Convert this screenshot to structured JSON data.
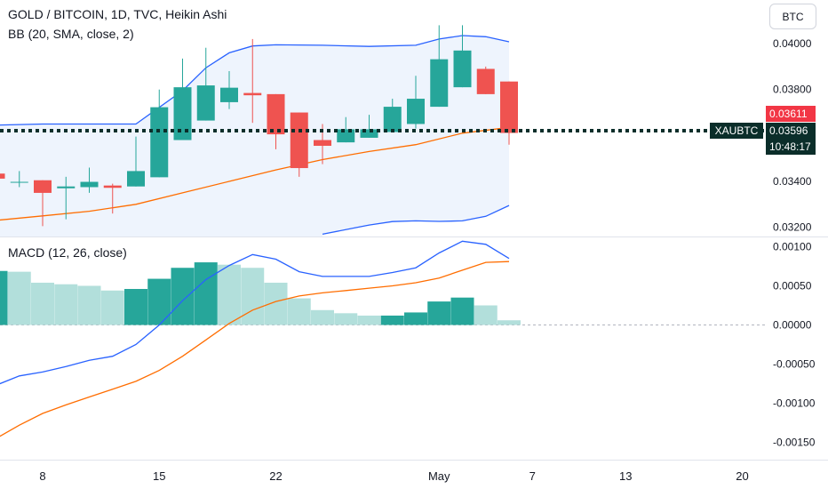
{
  "legend": {
    "main_title": "GOLD / BITCOIN, 1D, TVC, Heikin Ashi",
    "bb_title": "BB (20, SMA, close, 2)",
    "macd_title": "MACD (12, 26, close)"
  },
  "currency_badge": "BTC",
  "price_tags": {
    "symbol": "XAUBTC",
    "last_price": "0.03596",
    "countdown": "10:48:17",
    "open_price": "0.03611"
  },
  "colors": {
    "up": "#26a69a",
    "down": "#ef5350",
    "bb_band": "#2962ff",
    "bb_basis": "#ff6d00",
    "bb_fill": "#eef4fd",
    "macd_line": "#2962ff",
    "signal_line": "#ff6d00",
    "hist_strong": "#26a69a",
    "hist_weak": "#b2dfdb",
    "last_price_bg": "#0b2e2a",
    "open_price_bg": "#f23645"
  },
  "chart_data": [
    {
      "type": "candlestick",
      "title": "GOLD / BITCOIN, 1D, TVC, Heikin Ashi",
      "ylim": [
        0.0316,
        0.0419
      ],
      "y_ticks": [
        "0.03200",
        "0.03400",
        "0.03600",
        "0.03800",
        "0.04000"
      ],
      "x_ticks": [
        {
          "label": "8",
          "t": 0
        },
        {
          "label": "15",
          "t": 5
        },
        {
          "label": "22",
          "t": 10
        },
        {
          "label": "May",
          "t": 17
        },
        {
          "label": "7",
          "t": 21
        },
        {
          "label": "13",
          "t": 25
        },
        {
          "label": "20",
          "t": 30
        }
      ],
      "candles": [
        {
          "t": -2,
          "open": 0.03434,
          "high": 0.03445,
          "low": 0.0342,
          "close": 0.03412
        },
        {
          "t": -1,
          "open": 0.03398,
          "high": 0.03445,
          "low": 0.03375,
          "close": 0.03398
        },
        {
          "t": 0,
          "open": 0.03405,
          "high": 0.03405,
          "low": 0.03205,
          "close": 0.0335
        },
        {
          "t": 1,
          "open": 0.0337,
          "high": 0.0342,
          "low": 0.03235,
          "close": 0.03378
        },
        {
          "t": 2,
          "open": 0.03375,
          "high": 0.0346,
          "low": 0.0335,
          "close": 0.03398
        },
        {
          "t": 3,
          "open": 0.03382,
          "high": 0.0339,
          "low": 0.0326,
          "close": 0.03372
        },
        {
          "t": 4,
          "open": 0.03378,
          "high": 0.03595,
          "low": 0.03378,
          "close": 0.03445
        },
        {
          "t": 5,
          "open": 0.03418,
          "high": 0.038,
          "low": 0.03418,
          "close": 0.03723
        },
        {
          "t": 6,
          "open": 0.0358,
          "high": 0.03935,
          "low": 0.0358,
          "close": 0.0381
        },
        {
          "t": 7,
          "open": 0.03665,
          "high": 0.03982,
          "low": 0.03665,
          "close": 0.03818
        },
        {
          "t": 8,
          "open": 0.03745,
          "high": 0.0388,
          "low": 0.03715,
          "close": 0.03808
        },
        {
          "t": 9,
          "open": 0.03785,
          "high": 0.0402,
          "low": 0.03655,
          "close": 0.03775
        },
        {
          "t": 10,
          "open": 0.0378,
          "high": 0.0378,
          "low": 0.0354,
          "close": 0.03605
        },
        {
          "t": 11,
          "open": 0.037,
          "high": 0.037,
          "low": 0.0342,
          "close": 0.03458
        },
        {
          "t": 12,
          "open": 0.0358,
          "high": 0.0365,
          "low": 0.03475,
          "close": 0.03555
        },
        {
          "t": 13,
          "open": 0.0357,
          "high": 0.0368,
          "low": 0.0357,
          "close": 0.03627
        },
        {
          "t": 14,
          "open": 0.0359,
          "high": 0.0369,
          "low": 0.0359,
          "close": 0.03627
        },
        {
          "t": 15,
          "open": 0.03615,
          "high": 0.0376,
          "low": 0.03615,
          "close": 0.03725
        },
        {
          "t": 16,
          "open": 0.0365,
          "high": 0.0386,
          "low": 0.0363,
          "close": 0.0376
        },
        {
          "t": 17,
          "open": 0.03725,
          "high": 0.0408,
          "low": 0.03725,
          "close": 0.03932
        },
        {
          "t": 18,
          "open": 0.0381,
          "high": 0.0408,
          "low": 0.0381,
          "close": 0.0397
        },
        {
          "t": 19,
          "open": 0.0389,
          "high": 0.039,
          "low": 0.0378,
          "close": 0.0378
        },
        {
          "t": 20,
          "open": 0.03835,
          "high": 0.03835,
          "low": 0.0356,
          "close": 0.03611
        }
      ],
      "bb_upper": [
        {
          "t": -2,
          "value": 0.03645
        },
        {
          "t": 0,
          "value": 0.0365
        },
        {
          "t": 2,
          "value": 0.0365
        },
        {
          "t": 4,
          "value": 0.0365
        },
        {
          "t": 6,
          "value": 0.03795
        },
        {
          "t": 7,
          "value": 0.03895
        },
        {
          "t": 8,
          "value": 0.0396
        },
        {
          "t": 9,
          "value": 0.0399
        },
        {
          "t": 10,
          "value": 0.03995
        },
        {
          "t": 12,
          "value": 0.03993
        },
        {
          "t": 14,
          "value": 0.03988
        },
        {
          "t": 16,
          "value": 0.03993
        },
        {
          "t": 17,
          "value": 0.0402
        },
        {
          "t": 18,
          "value": 0.04035
        },
        {
          "t": 19,
          "value": 0.0403
        },
        {
          "t": 20,
          "value": 0.04008
        }
      ],
      "bb_basis": [
        {
          "t": -2,
          "value": 0.0323
        },
        {
          "t": 0,
          "value": 0.0325
        },
        {
          "t": 2,
          "value": 0.0327
        },
        {
          "t": 4,
          "value": 0.033
        },
        {
          "t": 6,
          "value": 0.0335
        },
        {
          "t": 8,
          "value": 0.034
        },
        {
          "t": 10,
          "value": 0.0345
        },
        {
          "t": 12,
          "value": 0.03495
        },
        {
          "t": 14,
          "value": 0.0353
        },
        {
          "t": 16,
          "value": 0.0356
        },
        {
          "t": 18,
          "value": 0.0361
        },
        {
          "t": 20,
          "value": 0.03635
        }
      ],
      "bb_lower": [
        {
          "t": 12,
          "value": 0.0317
        },
        {
          "t": 14,
          "value": 0.0321
        },
        {
          "t": 15,
          "value": 0.03225
        },
        {
          "t": 16,
          "value": 0.03228
        },
        {
          "t": 17,
          "value": 0.03226
        },
        {
          "t": 18,
          "value": 0.03228
        },
        {
          "t": 19,
          "value": 0.03248
        },
        {
          "t": 20,
          "value": 0.03295
        }
      ]
    },
    {
      "type": "bar",
      "title": "MACD (12, 26, close)",
      "ylim": [
        -0.00172,
        0.00113
      ],
      "y_ticks": [
        "0.00100",
        "0.00050",
        "0.00000",
        "-0.00050",
        "-0.00100",
        "-0.00150"
      ],
      "histogram": [
        {
          "t": -2,
          "value": 0.00069
        },
        {
          "t": -1,
          "value": 0.00068
        },
        {
          "t": 0,
          "value": 0.00054
        },
        {
          "t": 1,
          "value": 0.00052
        },
        {
          "t": 2,
          "value": 0.0005
        },
        {
          "t": 3,
          "value": 0.00044
        },
        {
          "t": 4,
          "value": 0.00046
        },
        {
          "t": 5,
          "value": 0.00059
        },
        {
          "t": 6,
          "value": 0.00073
        },
        {
          "t": 7,
          "value": 0.0008
        },
        {
          "t": 8,
          "value": 0.00077
        },
        {
          "t": 9,
          "value": 0.00073
        },
        {
          "t": 10,
          "value": 0.00054
        },
        {
          "t": 11,
          "value": 0.00034
        },
        {
          "t": 12,
          "value": 0.00019
        },
        {
          "t": 13,
          "value": 0.00015
        },
        {
          "t": 14,
          "value": 0.00012
        },
        {
          "t": 15,
          "value": 0.00012
        },
        {
          "t": 16,
          "value": 0.00016
        },
        {
          "t": 17,
          "value": 0.0003
        },
        {
          "t": 18,
          "value": 0.00035
        },
        {
          "t": 19,
          "value": 0.00025
        },
        {
          "t": 20,
          "value": 6e-05
        }
      ],
      "macd": [
        {
          "t": -2,
          "value": -0.00077
        },
        {
          "t": -1,
          "value": -0.00065
        },
        {
          "t": 0,
          "value": -0.0006
        },
        {
          "t": 1,
          "value": -0.00053
        },
        {
          "t": 2,
          "value": -0.00045
        },
        {
          "t": 3,
          "value": -0.0004
        },
        {
          "t": 4,
          "value": -0.00025
        },
        {
          "t": 5,
          "value": 0.0
        },
        {
          "t": 6,
          "value": 0.00031
        },
        {
          "t": 7,
          "value": 0.00058
        },
        {
          "t": 8,
          "value": 0.00076
        },
        {
          "t": 9,
          "value": 0.0009
        },
        {
          "t": 10,
          "value": 0.00084
        },
        {
          "t": 11,
          "value": 0.00068
        },
        {
          "t": 12,
          "value": 0.00062
        },
        {
          "t": 13,
          "value": 0.00062
        },
        {
          "t": 14,
          "value": 0.00062
        },
        {
          "t": 15,
          "value": 0.00067
        },
        {
          "t": 16,
          "value": 0.00073
        },
        {
          "t": 17,
          "value": 0.00092
        },
        {
          "t": 18,
          "value": 0.00107
        },
        {
          "t": 19,
          "value": 0.00103
        },
        {
          "t": 20,
          "value": 0.00085
        }
      ],
      "signal": [
        {
          "t": -2,
          "value": -0.00145
        },
        {
          "t": -1,
          "value": -0.00128
        },
        {
          "t": 0,
          "value": -0.00113
        },
        {
          "t": 1,
          "value": -0.00102
        },
        {
          "t": 2,
          "value": -0.00092
        },
        {
          "t": 3,
          "value": -0.00082
        },
        {
          "t": 4,
          "value": -0.00072
        },
        {
          "t": 5,
          "value": -0.00058
        },
        {
          "t": 6,
          "value": -0.0004
        },
        {
          "t": 7,
          "value": -0.00019
        },
        {
          "t": 8,
          "value": 2e-05
        },
        {
          "t": 9,
          "value": 0.00019
        },
        {
          "t": 10,
          "value": 0.0003
        },
        {
          "t": 11,
          "value": 0.00037
        },
        {
          "t": 12,
          "value": 0.00041
        },
        {
          "t": 13,
          "value": 0.00044
        },
        {
          "t": 14,
          "value": 0.00047
        },
        {
          "t": 15,
          "value": 0.0005
        },
        {
          "t": 16,
          "value": 0.00054
        },
        {
          "t": 17,
          "value": 0.0006
        },
        {
          "t": 18,
          "value": 0.0007
        },
        {
          "t": 19,
          "value": 0.0008
        },
        {
          "t": 20,
          "value": 0.00081
        }
      ]
    }
  ]
}
